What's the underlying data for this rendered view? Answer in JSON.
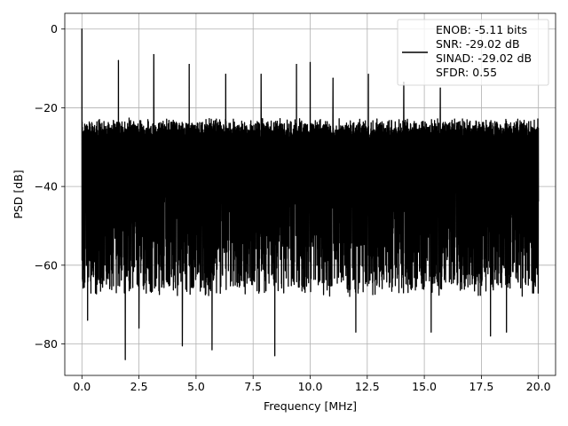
{
  "chart_data": {
    "type": "line",
    "title": "",
    "xlabel": "Frequency [MHz]",
    "ylabel": "PSD [dB]",
    "xlim": [
      -0.75,
      20.75
    ],
    "ylim": [
      -88,
      4
    ],
    "xticks": [
      0.0,
      2.5,
      5.0,
      7.5,
      10.0,
      12.5,
      15.0,
      17.5,
      20.0
    ],
    "xtick_labels": [
      "0.0",
      "2.5",
      "5.0",
      "7.5",
      "10.0",
      "12.5",
      "15.0",
      "17.5",
      "20.0"
    ],
    "yticks": [
      0,
      -20,
      -40,
      -60,
      -80
    ],
    "ytick_labels": [
      "0",
      "−20",
      "−40",
      "−60",
      "−80"
    ],
    "grid": true,
    "legend_position": "top-right",
    "series": [
      {
        "name": "",
        "color": "#000000",
        "noise_floor_upper": -24,
        "noise_floor_lower": -64,
        "peaks": [
          {
            "x": 0.0,
            "y": 0.0
          },
          {
            "x": 1.6,
            "y": -8.0
          },
          {
            "x": 3.15,
            "y": -6.5
          },
          {
            "x": 4.7,
            "y": -9.0
          },
          {
            "x": 6.3,
            "y": -11.5
          },
          {
            "x": 7.85,
            "y": -11.5
          },
          {
            "x": 9.4,
            "y": -9.0
          },
          {
            "x": 10.0,
            "y": -8.5
          },
          {
            "x": 11.0,
            "y": -12.5
          },
          {
            "x": 12.55,
            "y": -11.5
          },
          {
            "x": 14.1,
            "y": -13.5
          },
          {
            "x": 15.7,
            "y": -15.0
          }
        ],
        "dips": [
          {
            "x": 0.25,
            "y": -74.0
          },
          {
            "x": 1.9,
            "y": -84.0
          },
          {
            "x": 2.5,
            "y": -76.0
          },
          {
            "x": 4.4,
            "y": -80.5
          },
          {
            "x": 5.7,
            "y": -81.5
          },
          {
            "x": 8.45,
            "y": -83.0
          },
          {
            "x": 12.0,
            "y": -77.0
          },
          {
            "x": 15.3,
            "y": -77.0
          },
          {
            "x": 17.9,
            "y": -78.0
          },
          {
            "x": 18.6,
            "y": -77.0
          }
        ]
      }
    ],
    "legend_lines": [
      "ENOB: -5.11 bits",
      "SNR: -29.02 dB",
      "SINAD: -29.02 dB",
      "SFDR: 0.55"
    ]
  }
}
